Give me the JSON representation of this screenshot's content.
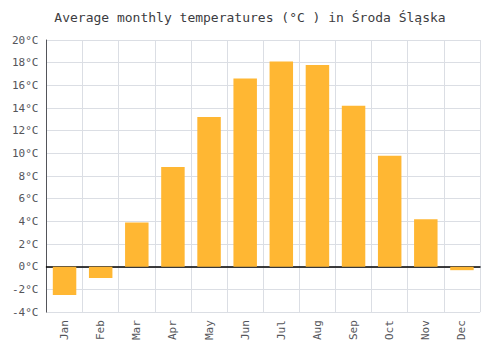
{
  "chart_data": {
    "type": "bar",
    "title": "Average monthly temperatures (°C ) in Środa Śląska",
    "categories": [
      "Jan",
      "Feb",
      "Mar",
      "Apr",
      "May",
      "Jun",
      "Jul",
      "Aug",
      "Sep",
      "Oct",
      "Nov",
      "Dec"
    ],
    "values": [
      -2.5,
      -1.0,
      3.9,
      8.8,
      13.2,
      16.6,
      18.1,
      17.8,
      14.2,
      9.8,
      4.2,
      -0.3
    ],
    "color": "#FFB733",
    "ylim": [
      -4,
      20
    ],
    "yticks": [
      {
        "value": -4,
        "label": "-4°C"
      },
      {
        "value": -2,
        "label": "-2°C"
      },
      {
        "value": 0,
        "label": "0°C"
      },
      {
        "value": 2,
        "label": "2°C"
      },
      {
        "value": 4,
        "label": "4°C"
      },
      {
        "value": 6,
        "label": "6°C"
      },
      {
        "value": 8,
        "label": "8°C"
      },
      {
        "value": 10,
        "label": "10°C"
      },
      {
        "value": 12,
        "label": "12°C"
      },
      {
        "value": 14,
        "label": "14°C"
      },
      {
        "value": 16,
        "label": "16°C"
      },
      {
        "value": 18,
        "label": "18°C"
      },
      {
        "value": 20,
        "label": "20°C"
      }
    ],
    "grid": true
  }
}
